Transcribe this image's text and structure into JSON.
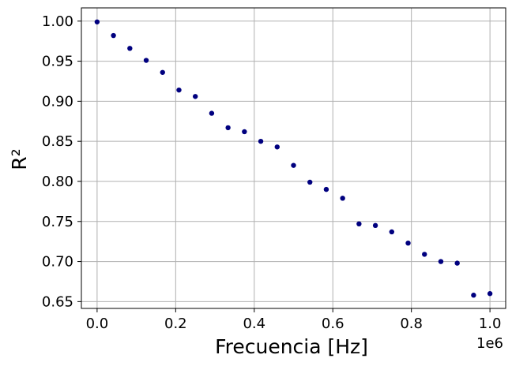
{
  "chart_data": {
    "type": "scatter",
    "title": "",
    "xlabel": "Frecuencia [Hz]",
    "ylabel": "R²",
    "x_offset_label": "1e6",
    "x_scale_factor": 1000000,
    "xlim": [
      -40000,
      1040000
    ],
    "ylim": [
      0.6415,
      1.0165
    ],
    "xticks": [
      0,
      200000,
      400000,
      600000,
      800000,
      1000000
    ],
    "xtick_labels": [
      "0.0",
      "0.2",
      "0.4",
      "0.6",
      "0.8",
      "1.0"
    ],
    "yticks": [
      0.65,
      0.7,
      0.75,
      0.8,
      0.85,
      0.9,
      0.95,
      1.0
    ],
    "ytick_labels": [
      "0.65",
      "0.70",
      "0.75",
      "0.80",
      "0.85",
      "0.90",
      "0.95",
      "1.00"
    ],
    "grid": true,
    "legend": false,
    "marker_color": "#00007f",
    "series": [
      {
        "x": [
          0,
          41667,
          83333,
          125000,
          166667,
          208333,
          250000,
          291667,
          333333,
          375000,
          416667,
          458333,
          500000,
          541667,
          583333,
          625000,
          666667,
          708333,
          750000,
          791667,
          833333,
          875000,
          916667,
          958333,
          1000000
        ],
        "y": [
          0.999,
          0.982,
          0.966,
          0.951,
          0.936,
          0.914,
          0.906,
          0.885,
          0.867,
          0.862,
          0.85,
          0.843,
          0.82,
          0.799,
          0.79,
          0.779,
          0.747,
          0.745,
          0.737,
          0.723,
          0.709,
          0.7,
          0.698,
          0.658,
          0.66
        ]
      }
    ]
  }
}
